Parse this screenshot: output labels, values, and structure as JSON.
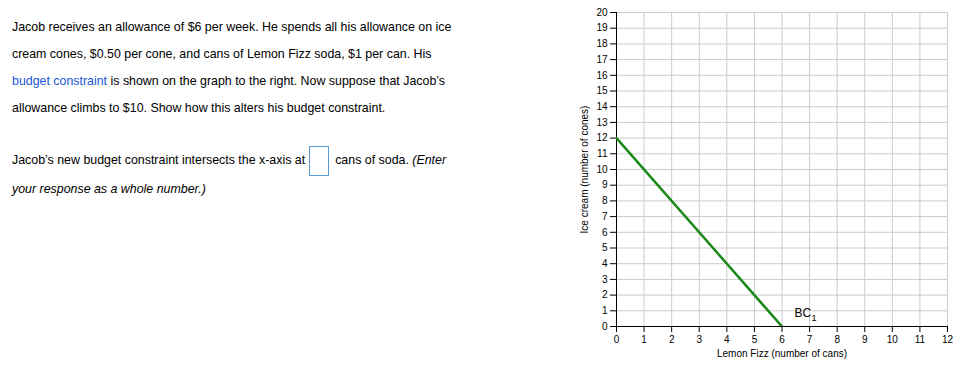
{
  "chart_data": {
    "type": "line",
    "xlabel": "Lemon Fizz (number of cans)",
    "ylabel": "Ice cream (number of cones)",
    "xlim": [
      0,
      12
    ],
    "ylim": [
      0,
      20
    ],
    "xticks": [
      0,
      1,
      2,
      3,
      4,
      5,
      6,
      7,
      8,
      9,
      10,
      11,
      12
    ],
    "yticks": [
      0,
      1,
      2,
      3,
      4,
      5,
      6,
      7,
      8,
      9,
      10,
      11,
      12,
      13,
      14,
      15,
      16,
      17,
      18,
      19,
      20
    ],
    "grid": true,
    "x": [
      0,
      6
    ],
    "series": [
      {
        "color": "#1a8a1a",
        "values": [
          12,
          0
        ]
      }
    ],
    "annotations": [
      {
        "text": "BC",
        "subscript": "1",
        "x": 6.45,
        "y": 0.85
      }
    ],
    "text_panel": [
      [
        [
          {
            "text": "Jacob receives an allowance of $6 per week. He spends all his allowance on ice"
          }
        ],
        [
          {
            "text": "cream cones, $0.50 per cone, and cans of Lemon Fizz soda, $1 per can. His"
          }
        ],
        [
          {
            "text": "budget constraint",
            "color": "#1a56d6"
          },
          {
            "text": " is shown on the graph to the right. Now suppose that Jacob’s"
          }
        ],
        [
          {
            "text": "allowance climbs to $10. Show how this alters his budget constraint."
          }
        ]
      ],
      [
        [
          {
            "text": "Jacob’s new budget constraint intersects the x-axis at"
          },
          {
            "input_box": true,
            "color": "#5b9bd5"
          },
          {
            "text": "cans of soda. "
          },
          {
            "text": "(Enter",
            "style": "italic"
          }
        ],
        [
          {
            "text": "your response as a whole number.)",
            "style": "italic"
          }
        ]
      ]
    ]
  }
}
